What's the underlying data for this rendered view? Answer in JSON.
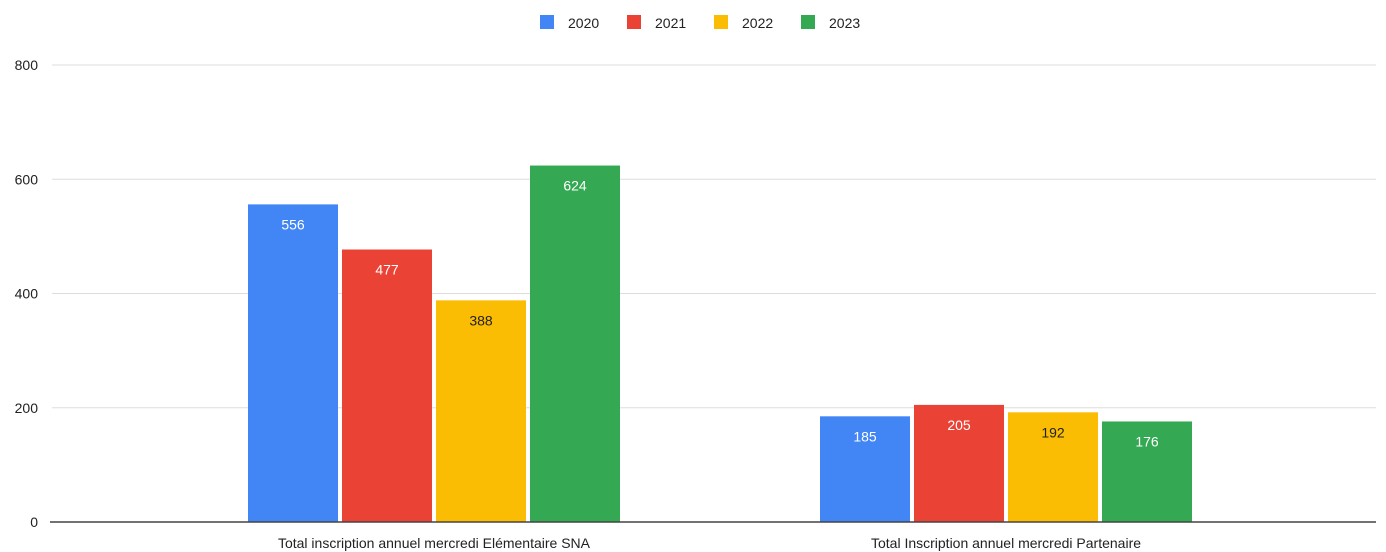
{
  "chart_data": {
    "type": "bar",
    "categories": [
      "Total inscription annuel mercredi Elémentaire SNA",
      "Total Inscription annuel mercredi  Partenaire"
    ],
    "series": [
      {
        "name": "2020",
        "values": [
          556,
          185
        ],
        "color": "#4285f4",
        "label_color": "#ffffff"
      },
      {
        "name": "2021",
        "values": [
          477,
          205
        ],
        "color": "#ea4335",
        "label_color": "#ffffff"
      },
      {
        "name": "2022",
        "values": [
          388,
          192
        ],
        "color": "#fbbc04",
        "label_color": "#222222"
      },
      {
        "name": "2023",
        "values": [
          624,
          176
        ],
        "color": "#34a853",
        "label_color": "#ffffff"
      }
    ],
    "ylim": [
      0,
      800
    ],
    "yticks": [
      0,
      200,
      400,
      600,
      800
    ],
    "title": "",
    "xlabel": "",
    "ylabel": "",
    "legend_position": "top-center",
    "grid": true,
    "data_labels": true
  }
}
